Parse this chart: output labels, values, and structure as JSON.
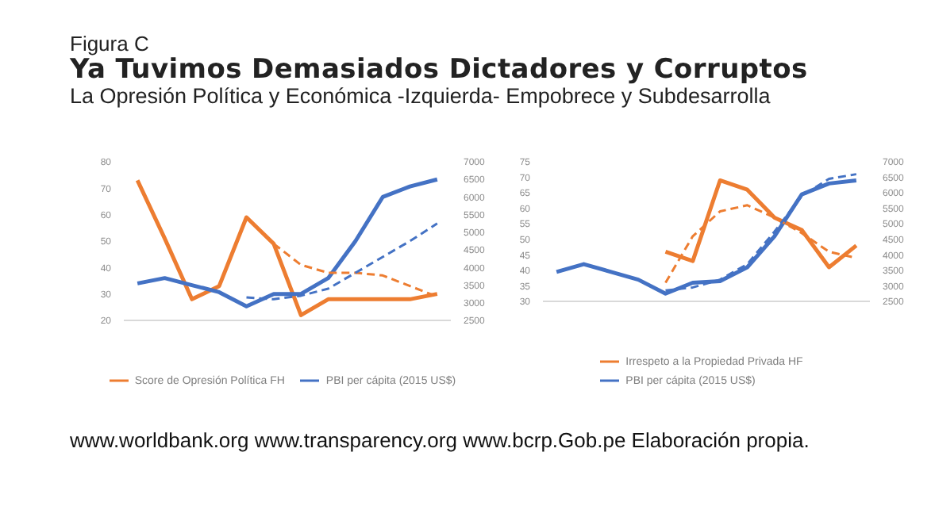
{
  "chart_data": [
    {
      "type": "line",
      "title": "Ya Tuvimos Demasiados Dictadores y Corruptos",
      "subtitle": "La Opresión Política y Económica  -Izquierda- Empobrece y Subdesarrolla",
      "annotations": [
        "Figura C",
        "www.worldbank.org www.transparency.org www.bcrp.Gob.pe Elaboración propia."
      ],
      "categories": [
        null,
        null,
        null,
        null,
        null,
        null,
        null,
        null,
        null,
        null,
        null,
        null
      ],
      "series": [
        {
          "name": "Score de Opresión Política FH",
          "color": "#ed7d31",
          "values": [
            73,
            51,
            28,
            33,
            59,
            49,
            22,
            28,
            28,
            28,
            28,
            30
          ]
        },
        {
          "name": "PBI per cápita (2015 US$)",
          "color": "#4472c4",
          "axis": "y2",
          "values": [
            3550,
            3700,
            3500,
            3300,
            2900,
            3250,
            3250,
            3700,
            4750,
            6000,
            6300,
            6500
          ]
        },
        {
          "type": "line",
          "color": "#ed7d31",
          "line_style": "dashed",
          "values": [
            null,
            null,
            null,
            null,
            null,
            49,
            41,
            38,
            38,
            37,
            33,
            29
          ]
        },
        {
          "type": "line",
          "color": "#4472c4",
          "line_style": "dashed",
          "axis": "y2",
          "values": [
            null,
            null,
            null,
            null,
            3150,
            3100,
            3200,
            3400,
            3850,
            4300,
            4750,
            5250
          ]
        }
      ],
      "ylim": [
        20,
        80
      ],
      "yticks": [
        20,
        30,
        40,
        50,
        60,
        70,
        80
      ],
      "y2lim": [
        2500,
        7000
      ],
      "y2ticks": [
        2500,
        3000,
        3500,
        4000,
        4500,
        5000,
        5500,
        6000,
        6500,
        7000
      ],
      "grid": false,
      "legend": "bottom",
      "marker": "none"
    },
    {
      "type": "line",
      "categories": [
        null,
        null,
        null,
        null,
        null,
        null,
        null,
        null,
        null,
        null,
        null,
        null
      ],
      "series": [
        {
          "name": "Irrespeto a la Propiedad Privada HF",
          "color": "#ed7d31",
          "values": [
            null,
            null,
            null,
            null,
            46,
            43,
            69,
            66,
            57,
            53,
            41,
            48
          ]
        },
        {
          "name": "PBI per cápita (2015 US$)",
          "color": "#4472c4",
          "axis": "y2",
          "values": [
            3450,
            3700,
            3450,
            3200,
            2750,
            3100,
            3150,
            3600,
            4600,
            5950,
            6300,
            6400
          ]
        },
        {
          "type": "line",
          "color": "#ed7d31",
          "line_style": "dashed",
          "values": [
            null,
            null,
            null,
            null,
            36,
            51,
            59,
            61,
            57,
            52,
            46,
            44
          ]
        },
        {
          "type": "line",
          "color": "#4472c4",
          "line_style": "dashed",
          "axis": "y2",
          "values": [
            null,
            null,
            null,
            null,
            2850,
            2950,
            3200,
            3700,
            4750,
            5900,
            6450,
            6600
          ]
        }
      ],
      "ylim": [
        30,
        75
      ],
      "yticks": [
        30,
        35,
        40,
        45,
        50,
        55,
        60,
        65,
        70,
        75
      ],
      "y2lim": [
        2500,
        7000
      ],
      "y2ticks": [
        2500,
        3000,
        3500,
        4000,
        4500,
        5000,
        5500,
        6000,
        6500,
        7000
      ],
      "grid": false,
      "legend": "bottom",
      "marker": "none"
    }
  ]
}
